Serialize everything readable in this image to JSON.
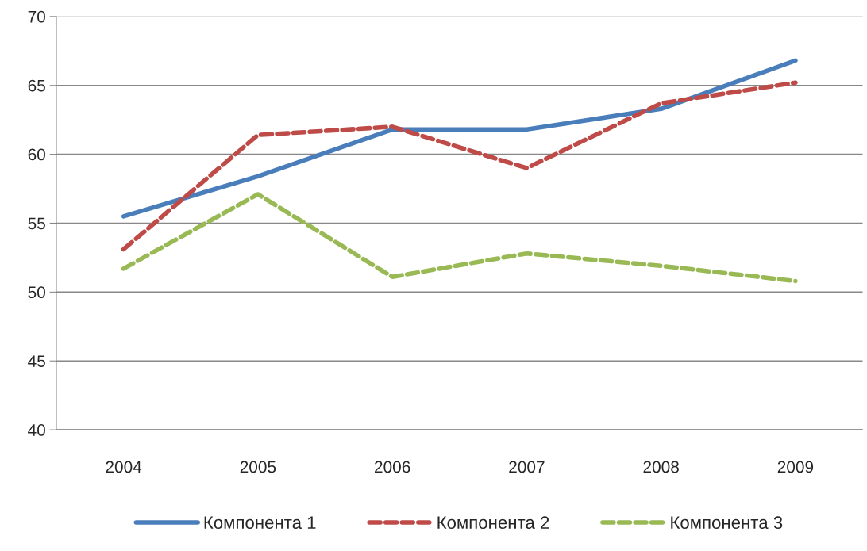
{
  "chart_data": {
    "type": "line",
    "categories": [
      "2004",
      "2005",
      "2006",
      "2007",
      "2008",
      "2009"
    ],
    "series": [
      {
        "name": "Компонента 1",
        "color": "#4a7ebb",
        "line_style": "solid",
        "values": [
          55.5,
          58.4,
          61.8,
          61.8,
          63.3,
          66.8
        ]
      },
      {
        "name": "Компонента 2",
        "color": "#be4b48",
        "line_style": "dashed",
        "values": [
          53.1,
          61.4,
          62.0,
          59.0,
          63.7,
          65.2
        ]
      },
      {
        "name": "Компонента 3",
        "color": "#98b954",
        "line_style": "dashed",
        "values": [
          51.7,
          57.1,
          51.1,
          52.8,
          51.9,
          50.8
        ]
      }
    ],
    "ylim": [
      40,
      70
    ],
    "yticks": [
      40,
      45,
      50,
      55,
      60,
      65,
      70
    ],
    "grid": "y",
    "legend": "bottom",
    "marker": "none"
  }
}
